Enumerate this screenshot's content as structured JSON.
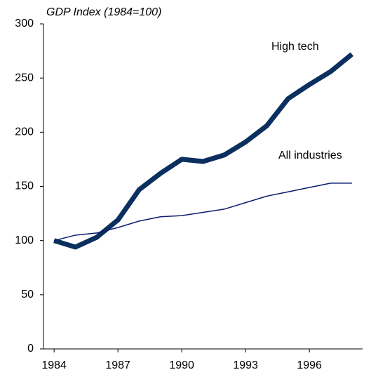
{
  "chart_data": {
    "type": "line",
    "title": "GDP Index (1984=100)",
    "x": [
      1984,
      1985,
      1986,
      1987,
      1988,
      1989,
      1990,
      1991,
      1992,
      1993,
      1994,
      1995,
      1996,
      1997,
      1998
    ],
    "series": [
      {
        "name": "High tech",
        "color": "#0b2f5e",
        "width": 7,
        "values": [
          100,
          94,
          103,
          119,
          147,
          162,
          175,
          173,
          179,
          191,
          206,
          231,
          244,
          256,
          272
        ]
      },
      {
        "name": "All industries",
        "color": "#0b1d6e",
        "width": 1.5,
        "values": [
          100,
          105,
          107,
          112,
          118,
          122,
          123,
          126,
          129,
          135,
          141,
          145,
          149,
          153,
          153
        ]
      }
    ],
    "xlim": [
      1983.5,
      1998.5
    ],
    "xticks": [
      1984,
      1987,
      1990,
      1993,
      1996
    ],
    "ylim": [
      0,
      300
    ],
    "yticks": [
      0,
      50,
      100,
      150,
      200,
      250,
      300
    ],
    "grid": false
  }
}
